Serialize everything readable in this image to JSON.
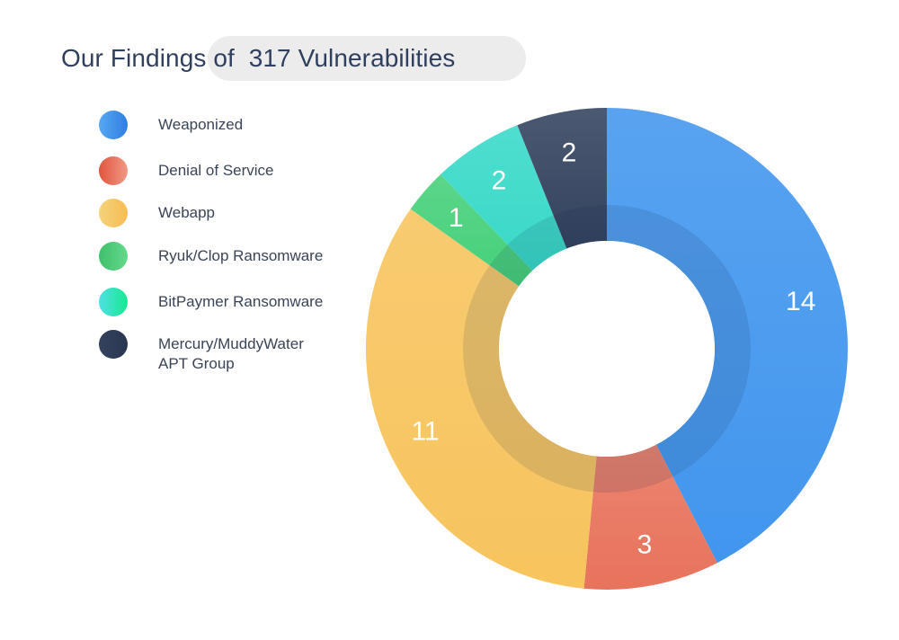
{
  "title": {
    "prefix": "Our Findings of ",
    "highlight": " 317 Vulnerabilities"
  },
  "chart_data": {
    "type": "pie",
    "title": "Our Findings of  317 Vulnerabilities",
    "categories": [
      "Weaponized",
      "Denial of Service",
      "Webapp",
      "Ryuk/Clop Ransomware",
      "BitPaymer Ransomware",
      "Mercury/MuddyWater APT Group"
    ],
    "values": [
      14,
      3,
      11,
      1,
      2,
      2
    ],
    "colors": [
      "#4296ee",
      "#e8735c",
      "#f7c45d",
      "#45d07a",
      "#38d9c8",
      "#33425e"
    ],
    "legend_placement": "left",
    "donut": true
  },
  "legend": [
    {
      "label": "Weaponized",
      "color_a": "#56a8f5",
      "color_b": "#2f7ee0"
    },
    {
      "label": "Denial of Service",
      "color_a": "#e2543e",
      "color_b": "#f09a85"
    },
    {
      "label": "Webapp",
      "color_a": "#f5d27a",
      "color_b": "#f7bd53"
    },
    {
      "label": "Ryuk/Clop Ransomware",
      "color_a": "#3fbf6a",
      "color_b": "#63d98c"
    },
    {
      "label": "BitPaymer Ransomware",
      "color_a": "#4ee0e6",
      "color_b": "#18e890"
    },
    {
      "label": "Mercury/MuddyWater APT Group",
      "label_line1": "Mercury/MuddyWater",
      "label_line2": "APT Group",
      "color_a": "#33425e",
      "color_b": "#2a3650"
    }
  ]
}
